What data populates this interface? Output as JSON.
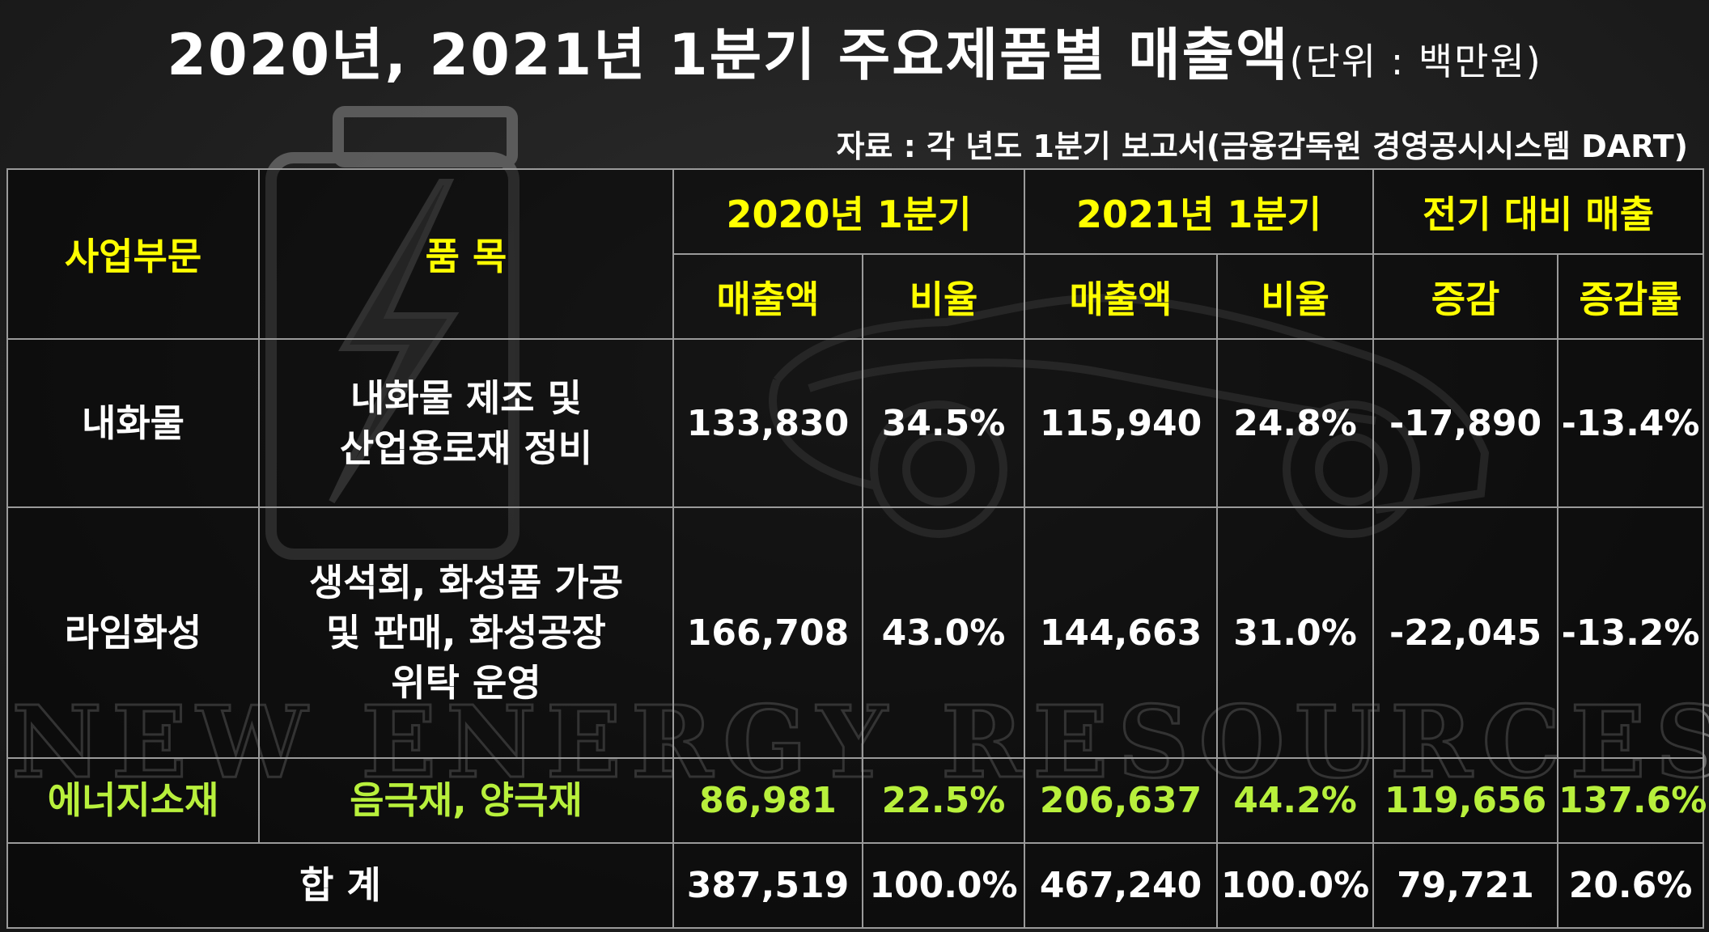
{
  "title": "2020년, 2021년 1분기 주요제품별 매출액",
  "unit": "(단위 : 백만원)",
  "source": "자료 : 각 년도 1분기 보고서(금융감독원 경영공시시스템 DART)",
  "watermark": "NEW ENERGY RESOURCES",
  "colors": {
    "header": "#ffff00",
    "highlight": "#b8f03c",
    "text": "#ffffff"
  },
  "header": {
    "segment": "사업부문",
    "product": "품 목",
    "q2020": "2020년 1분기",
    "q2021": "2021년 1분기",
    "change": "전기 대비 매출",
    "sales_2020": "매출액",
    "ratio_2020": "비율",
    "sales_2021": "매출액",
    "ratio_2021": "비율",
    "diff": "증감",
    "diff_rate": "증감률"
  },
  "rows": [
    {
      "segment": "내화물",
      "product": "내화물 제조 및\n산업용로재 정비",
      "sales_2020": "133,830",
      "ratio_2020": "34.5%",
      "sales_2021": "115,940",
      "ratio_2021": "24.8%",
      "diff": "-17,890",
      "diff_rate": "-13.4%"
    },
    {
      "segment": "라임화성",
      "product": "생석회, 화성품 가공\n및 판매, 화성공장\n위탁 운영",
      "sales_2020": "166,708",
      "ratio_2020": "43.0%",
      "sales_2021": "144,663",
      "ratio_2021": "31.0%",
      "diff": "-22,045",
      "diff_rate": "-13.2%"
    },
    {
      "segment": "에너지소재",
      "product": "음극재, 양극재",
      "sales_2020": "86,981",
      "ratio_2020": "22.5%",
      "sales_2021": "206,637",
      "ratio_2021": "44.2%",
      "diff": "119,656",
      "diff_rate": "137.6%"
    }
  ],
  "total": {
    "label": "합 계",
    "sales_2020": "387,519",
    "ratio_2020": "100.0%",
    "sales_2021": "467,240",
    "ratio_2021": "100.0%",
    "diff": "79,721",
    "diff_rate": "20.6%"
  }
}
